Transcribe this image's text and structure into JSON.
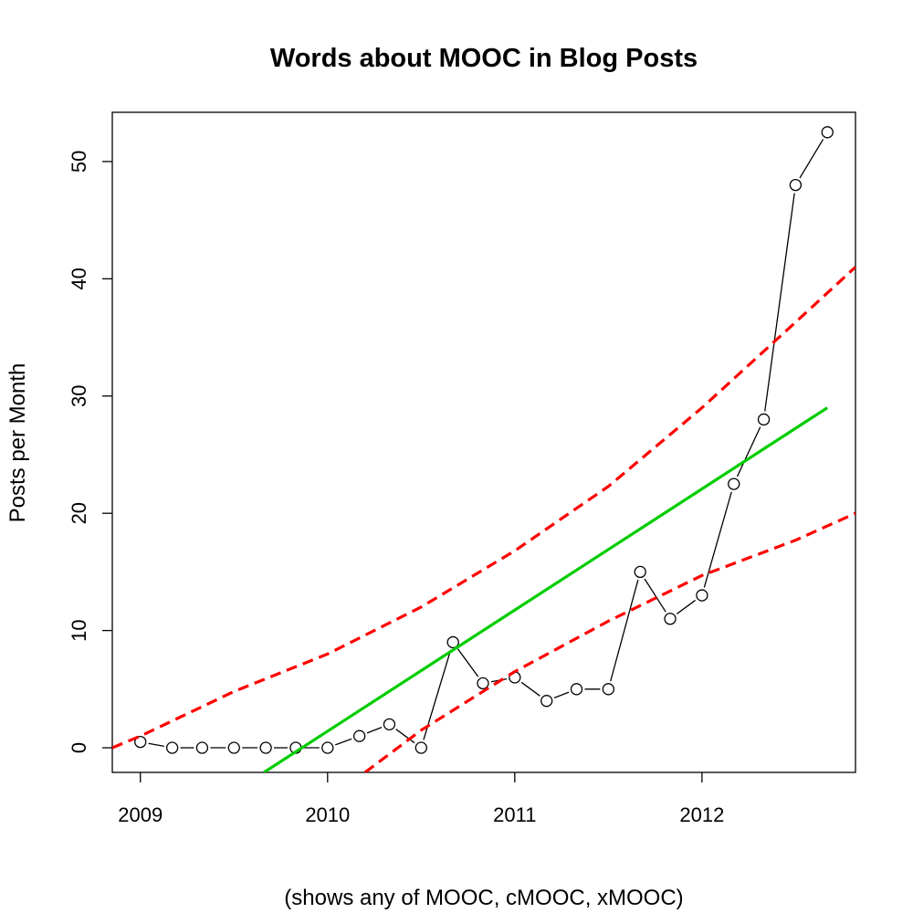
{
  "chart_data": {
    "type": "line",
    "title": "Words about MOOC in Blog Posts",
    "xlabel": "(shows any of MOOC, cMOOC, xMOOC)",
    "ylabel": "Posts per Month",
    "xlim": [
      2008.85,
      2012.82
    ],
    "ylim": [
      -2.1,
      54.2
    ],
    "x_ticks": [
      2009,
      2010,
      2011,
      2012
    ],
    "y_ticks": [
      0,
      10,
      20,
      30,
      40,
      50
    ],
    "grid": false,
    "legend": "none",
    "series": [
      {
        "style": "points-and-lines",
        "color": "#000000",
        "points": [
          [
            2009.0,
            0.5
          ],
          [
            2009.17,
            0
          ],
          [
            2009.33,
            0
          ],
          [
            2009.5,
            0
          ],
          [
            2009.67,
            0
          ],
          [
            2009.83,
            0
          ],
          [
            2010.0,
            0
          ],
          [
            2010.17,
            1
          ],
          [
            2010.33,
            2
          ],
          [
            2010.5,
            0
          ],
          [
            2010.67,
            9
          ],
          [
            2010.83,
            5.5
          ],
          [
            2011.0,
            6
          ],
          [
            2011.17,
            4
          ],
          [
            2011.33,
            5
          ],
          [
            2011.5,
            5
          ],
          [
            2011.67,
            15
          ],
          [
            2011.83,
            11
          ],
          [
            2012.0,
            13
          ],
          [
            2012.17,
            22.5
          ],
          [
            2012.33,
            28
          ],
          [
            2012.5,
            48
          ],
          [
            2012.67,
            52.5
          ]
        ]
      },
      {
        "style": "solid-line",
        "color": "#00cd00",
        "points": [
          [
            2009.66,
            -2.1
          ],
          [
            2012.67,
            29
          ]
        ]
      },
      {
        "style": "dashed-line",
        "color": "#ff0000",
        "points": [
          [
            2008.85,
            0
          ],
          [
            2009.0,
            1.0
          ],
          [
            2009.5,
            4.8
          ],
          [
            2010.0,
            8.0
          ],
          [
            2010.5,
            12.0
          ],
          [
            2011.0,
            16.8
          ],
          [
            2011.5,
            22.3
          ],
          [
            2012.0,
            29.0
          ],
          [
            2012.5,
            36.3
          ],
          [
            2012.82,
            41.0
          ]
        ]
      },
      {
        "style": "dashed-line",
        "color": "#ff0000",
        "points": [
          [
            2010.2,
            -2.1
          ],
          [
            2010.5,
            1.5
          ],
          [
            2011.0,
            6.5
          ],
          [
            2011.5,
            10.8
          ],
          [
            2012.0,
            14.7
          ],
          [
            2012.5,
            17.7
          ],
          [
            2012.82,
            20.0
          ]
        ]
      }
    ]
  }
}
